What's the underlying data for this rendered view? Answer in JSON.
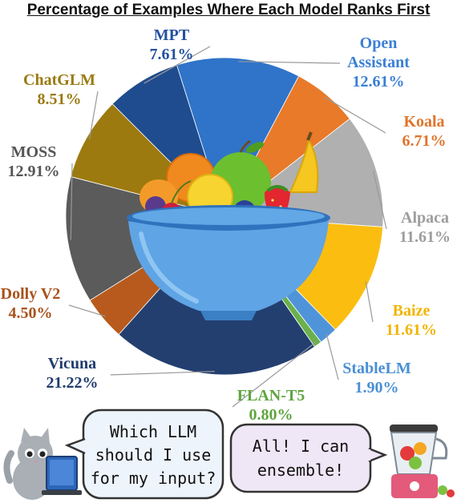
{
  "chart_data": {
    "type": "pie",
    "title": "Percentage of Examples Where Each Model Ranks First",
    "slices": [
      {
        "label": "Open Assistant",
        "label_lines": [
          "Open",
          "Assistant"
        ],
        "value": 12.61,
        "value_text": "12.61%",
        "color": "#2f74c9",
        "label_color": "#3b7fd4"
      },
      {
        "label": "Koala",
        "label_lines": [
          "Koala"
        ],
        "value": 6.71,
        "value_text": "6.71%",
        "color": "#e87a2a",
        "label_color": "#e0742a"
      },
      {
        "label": "Alpaca",
        "label_lines": [
          "Alpaca"
        ],
        "value": 11.61,
        "value_text": "11.61%",
        "color": "#b0b0b0",
        "label_color": "#9d9d9d"
      },
      {
        "label": "Baize",
        "label_lines": [
          "Baize"
        ],
        "value": 11.61,
        "value_text": "11.61%",
        "color": "#fbbd10",
        "label_color": "#f2b400"
      },
      {
        "label": "StableLM",
        "label_lines": [
          "StableLM"
        ],
        "value": 1.9,
        "value_text": "1.90%",
        "color": "#4f94d8",
        "label_color": "#4a8fd4"
      },
      {
        "label": "FLAN-T5",
        "label_lines": [
          "FLAN-T5"
        ],
        "value": 0.8,
        "value_text": "0.80%",
        "color": "#6ab04c",
        "label_color": "#5fa53f"
      },
      {
        "label": "Vicuna",
        "label_lines": [
          "Vicuna"
        ],
        "value": 21.22,
        "value_text": "21.22%",
        "color": "#233f70",
        "label_color": "#203c6d"
      },
      {
        "label": "Dolly V2",
        "label_lines": [
          "Dolly V2"
        ],
        "value": 4.5,
        "value_text": "4.50%",
        "color": "#b85a1d",
        "label_color": "#a9521a"
      },
      {
        "label": "MOSS",
        "label_lines": [
          "MOSS"
        ],
        "value": 12.91,
        "value_text": "12.91%",
        "color": "#5b5b5b",
        "label_color": "#555555"
      },
      {
        "label": "ChatGLM",
        "label_lines": [
          "ChatGLM"
        ],
        "value": 8.51,
        "value_text": "8.51%",
        "color": "#9c7a0f",
        "label_color": "#9a7a10"
      },
      {
        "label": "MPT",
        "label_lines": [
          "MPT"
        ],
        "value": 7.61,
        "value_text": "7.61%",
        "color": "#1f4c8f",
        "label_color": "#2451a0"
      }
    ]
  },
  "bubbles": {
    "question_lines": [
      "Which LLM",
      "should I use",
      "for my input?"
    ],
    "answer_lines": [
      "All! I can",
      "ensemble!"
    ]
  },
  "icons": {
    "bowl": "fruit-bowl-icon",
    "cat": "cat-with-laptop-icon",
    "blender": "blender-icon"
  }
}
